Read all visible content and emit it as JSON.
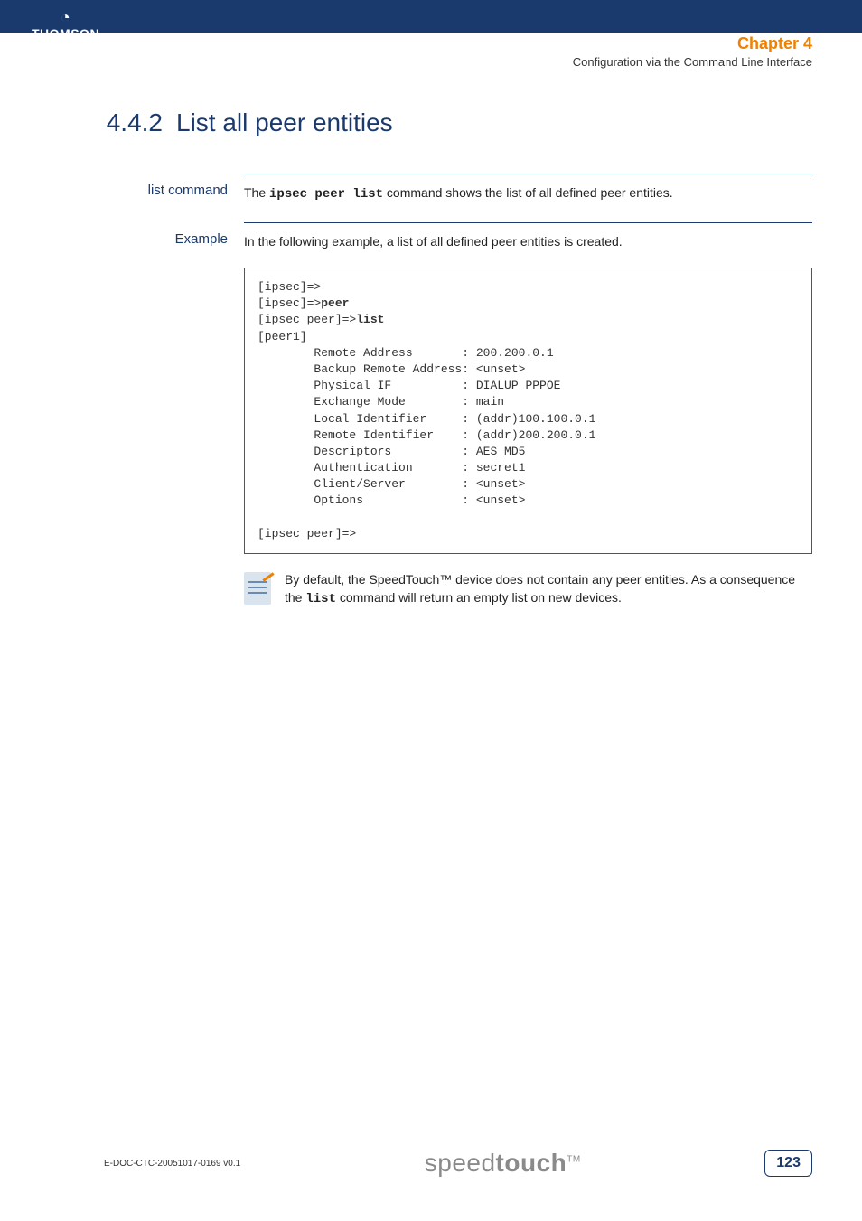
{
  "header": {
    "logo_top_glyph": "◔",
    "logo_text": "THOMSON",
    "chapter_label": "Chapter 4",
    "chapter_sub": "Configuration via the Command Line Interface"
  },
  "section": {
    "number": "4.4.2",
    "title": "List all peer entities"
  },
  "block1": {
    "label": "list command",
    "text_pre": "The ",
    "cmd": "ipsec peer list",
    "text_post": " command shows the list of all defined peer entities."
  },
  "block2": {
    "label": "Example",
    "intro": "In the following example, a list of all defined peer entities is created.",
    "code_lines": [
      "[ipsec]=>",
      "[ipsec]=>peer",
      "[ipsec peer]=>list",
      "[peer1]",
      "        Remote Address       : 200.200.0.1",
      "        Backup Remote Address: <unset>",
      "        Physical IF          : DIALUP_PPPOE",
      "        Exchange Mode        : main",
      "        Local Identifier     : (addr)100.100.0.1",
      "        Remote Identifier    : (addr)200.200.0.1",
      "        Descriptors          : AES_MD5",
      "        Authentication       : secret1",
      "        Client/Server        : <unset>",
      "        Options              : <unset>",
      "",
      "[ipsec peer]=>"
    ],
    "code_bold_lines": [
      1,
      2
    ],
    "code_bold_words": {
      "1": "peer",
      "2": "list"
    },
    "note_pre": "By default, the SpeedTouch™ device does not contain any peer entities. As a consequence the ",
    "note_cmd": "list",
    "note_post": " command will return an empty list on new devices."
  },
  "footer": {
    "doc_id": "E-DOC-CTC-20051017-0169 v0.1",
    "brand_light": "speed",
    "brand_bold": "touch",
    "brand_tm": "TM",
    "page": "123"
  },
  "colors": {
    "header_bg": "#1a3a6e",
    "accent": "#f08000",
    "text": "#333333",
    "brand_gray": "#8a8a8a"
  }
}
